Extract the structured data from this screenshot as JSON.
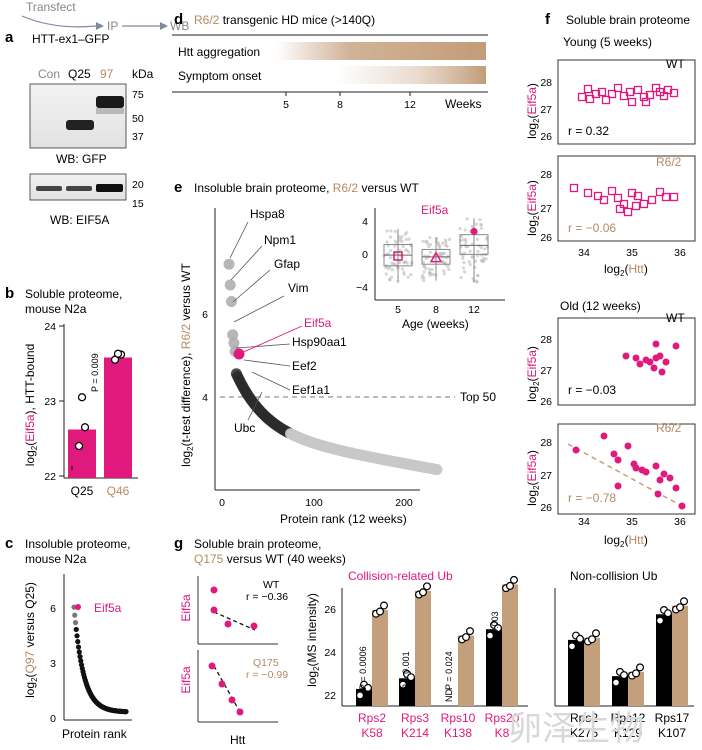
{
  "panels": {
    "a": {
      "label": "a",
      "step1": "Transfect",
      "step2": "IP",
      "step3": "WB",
      "construct": "HTT-ex1–GFP",
      "lanes": [
        "Con",
        "Q25",
        "97"
      ],
      "kda": "kDa",
      "gfp_markers": [
        "75",
        "50",
        "37"
      ],
      "gfp_caption": "WB: GFP",
      "eif5a_markers": [
        "20",
        "15"
      ],
      "eif5a_caption": "WB: EIF5A"
    },
    "b": {
      "label": "b",
      "title1": "Soluble proteome,",
      "title2": "mouse N2a",
      "ylabel_pre": "log",
      "ylabel_sub": "2",
      "ylabel_a": "(",
      "ylabel_mag": "Eif5a",
      "ylabel_b": "), HTT-bound",
      "yticks": [
        "24",
        "23",
        "22"
      ],
      "xcats": [
        "Q25",
        "Q46"
      ],
      "pvalue": "P = 0.009"
    },
    "c": {
      "label": "c",
      "title1": "Insoluble proteome,",
      "title2": "mouse N2a",
      "ylabel_pre": "log",
      "ylabel_sub": "2",
      "ylabel_a": "(",
      "ylabel_tan": "Q97",
      "ylabel_b": " versus Q25)",
      "yticks": [
        "6",
        "3",
        "0"
      ],
      "xlabel": "Protein rank",
      "highlight": "Eif5a"
    },
    "d": {
      "label": "d",
      "title_tan": "R6/2",
      "title_rest": " transgenic HD mice (>140Q)",
      "row1": "Htt aggregation",
      "row2": "Symptom onset",
      "ticks": [
        "5",
        "8",
        "12"
      ],
      "unit": "Weeks"
    },
    "e": {
      "label": "e",
      "title_a": "Insoluble brain proteome, ",
      "title_tan": "R6/2",
      "title_b": " versus WT",
      "ylabel_a": "log",
      "ylabel_sub": "2",
      "ylabel_b": "(t-test difference), ",
      "ylabel_tan": "R6/2",
      "ylabel_c": " versus WT",
      "yticks": [
        "6",
        "4"
      ],
      "xticks": [
        "0",
        "100",
        "200"
      ],
      "xlabel": "Protein rank (12 weeks)",
      "cutoff": "Top 50",
      "proteins": [
        "Hspa8",
        "Npm1",
        "Gfap",
        "Vim",
        "Eif5a",
        "Hsp90aa1",
        "Eef2",
        "Eef1a1",
        "Ubc"
      ],
      "inset": {
        "title": "Eif5a",
        "yticks": [
          "4",
          "0",
          "−4"
        ],
        "xticks": [
          "5",
          "8",
          "12"
        ],
        "xlabel": "Age (weeks)"
      }
    },
    "f": {
      "label": "f",
      "title": "Soluble brain proteome",
      "young": "Young (5 weeks)",
      "old": "Old (12 weeks)",
      "wt": "WT",
      "r62": "R6/2",
      "r_young_wt": "r = 0.32",
      "r_young_r62": "r = −0.06",
      "r_old_wt": "r = −0.03",
      "r_old_r62": "r = −0.78",
      "yticks": [
        "28",
        "27",
        "26"
      ],
      "xticks": [
        "34",
        "35",
        "36"
      ],
      "xlabel_a": "log",
      "xlabel_sub": "2",
      "xlabel_b": "(",
      "xlabel_tan": "Htt",
      "xlabel_c": ")",
      "ylabel_a": "log",
      "ylabel_sub": "2",
      "ylabel_b": "(",
      "ylabel_mag": "Eif5a",
      "ylabel_c": ")"
    },
    "g": {
      "label": "g",
      "title1": "Soluble brain proteome,",
      "title2_tan": "Q175",
      "title2_rest": " versus WT (40 weeks)",
      "scatter_ylabel": "Eif5a",
      "scatter_xlabel": "Htt",
      "wt": "WT",
      "r_wt": "r = −0.36",
      "q175": "Q175",
      "r_q175": "r = −0.99",
      "ylabel_a": "log",
      "ylabel_sub": "2",
      "ylabel_b": "(MS intensity)",
      "yticks": [
        "26",
        "24",
        "22"
      ],
      "group1": "Collision-related Ub",
      "group2": "Non-collision Ub",
      "pvals": [
        "P = 0.0006",
        "P = 0.001",
        "P = 0.024",
        "P = 0.003"
      ],
      "nd": "ND",
      "sites_collision": [
        [
          "Rps2",
          "K58"
        ],
        [
          "Rps3",
          "K214"
        ],
        [
          "Rps10",
          "K138"
        ],
        [
          "Rps20",
          "K8"
        ]
      ],
      "sites_noncollision": [
        [
          "Rps2",
          "K275"
        ],
        [
          "Rps12",
          "K129"
        ],
        [
          "Rps17",
          "K107"
        ]
      ]
    }
  },
  "chart_data": [
    {
      "panel": "b",
      "type": "bar",
      "categories": [
        "Q25",
        "Q46"
      ],
      "values": [
        22.62,
        23.58
      ],
      "ylim": [
        22,
        24
      ],
      "points": [
        [
          22.4,
          22.65,
          23.05
        ],
        [
          23.55,
          23.62,
          23.63
        ]
      ],
      "pvalue": "P = 0.009"
    },
    {
      "panel": "g",
      "type": "bar",
      "categories": [
        "Rps2 K58",
        "Rps3 K214",
        "Rps10 K138",
        "Rps20 K8",
        "Rps2 K275",
        "Rps12 K129",
        "Rps17 K107"
      ],
      "ylim": [
        21,
        27
      ],
      "series": [
        {
          "name": "WT",
          "values": [
            21.8,
            22.3,
            null,
            24.6,
            24.1,
            22.4,
            25.3
          ]
        },
        {
          "name": "Q175",
          "values": [
            25.5,
            26.4,
            24.3,
            26.7,
            24.2,
            22.6,
            25.7
          ]
        }
      ]
    },
    {
      "panel": "e-inset",
      "type": "scatter",
      "title": "Eif5a",
      "categories": [
        "5",
        "8",
        "12"
      ],
      "medians": [
        0.1,
        -0.1,
        1.3
      ],
      "highlight": [
        0,
        -0.2,
        3.0
      ],
      "ylim": [
        -5,
        5
      ]
    }
  ]
}
